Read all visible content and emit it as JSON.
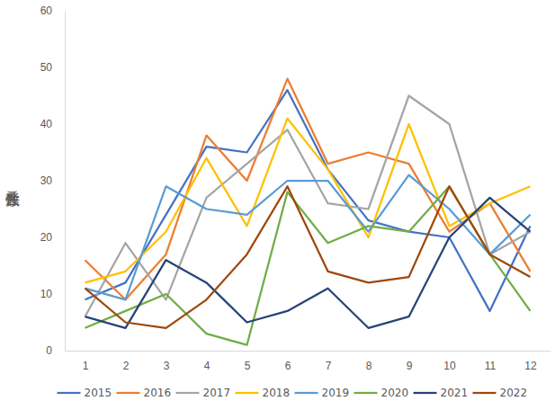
{
  "chart_data": {
    "type": "line",
    "y_label": "発生件数",
    "categories": [
      "1",
      "2",
      "3",
      "4",
      "5",
      "6",
      "7",
      "8",
      "9",
      "10",
      "11",
      "12"
    ],
    "series": [
      {
        "name": "2015",
        "color": "#4472c4",
        "values": [
          9,
          12,
          24,
          36,
          35,
          46,
          32,
          23,
          21,
          20,
          7,
          22
        ]
      },
      {
        "name": "2016",
        "color": "#ed7d31",
        "values": [
          16,
          9,
          17,
          38,
          30,
          48,
          33,
          35,
          33,
          21,
          26,
          14
        ]
      },
      {
        "name": "2017",
        "color": "#a5a5a5",
        "values": [
          6,
          19,
          9,
          27,
          33,
          39,
          26,
          25,
          45,
          40,
          17,
          21
        ]
      },
      {
        "name": "2018",
        "color": "#ffc000",
        "values": [
          12,
          14,
          21,
          34,
          22,
          41,
          32,
          20,
          40,
          22,
          26,
          29
        ]
      },
      {
        "name": "2019",
        "color": "#5b9bd5",
        "values": [
          11,
          9,
          29,
          25,
          24,
          30,
          30,
          21,
          31,
          25,
          17,
          24
        ]
      },
      {
        "name": "2020",
        "color": "#70ad47",
        "values": [
          4,
          7,
          10,
          3,
          1,
          28,
          19,
          22,
          21,
          29,
          17,
          7
        ]
      },
      {
        "name": "2021",
        "color": "#264478",
        "values": [
          6,
          4,
          16,
          12,
          5,
          7,
          11,
          4,
          6,
          20,
          27,
          21
        ]
      },
      {
        "name": "2022",
        "color": "#9e480e",
        "values": [
          11,
          5,
          4,
          9,
          17,
          29,
          14,
          12,
          13,
          29,
          17,
          13
        ]
      }
    ],
    "ylim": [
      0,
      60
    ],
    "yticks": [
      0,
      10,
      20,
      30,
      40,
      50,
      60
    ],
    "grid": false,
    "legend": "bottom"
  }
}
